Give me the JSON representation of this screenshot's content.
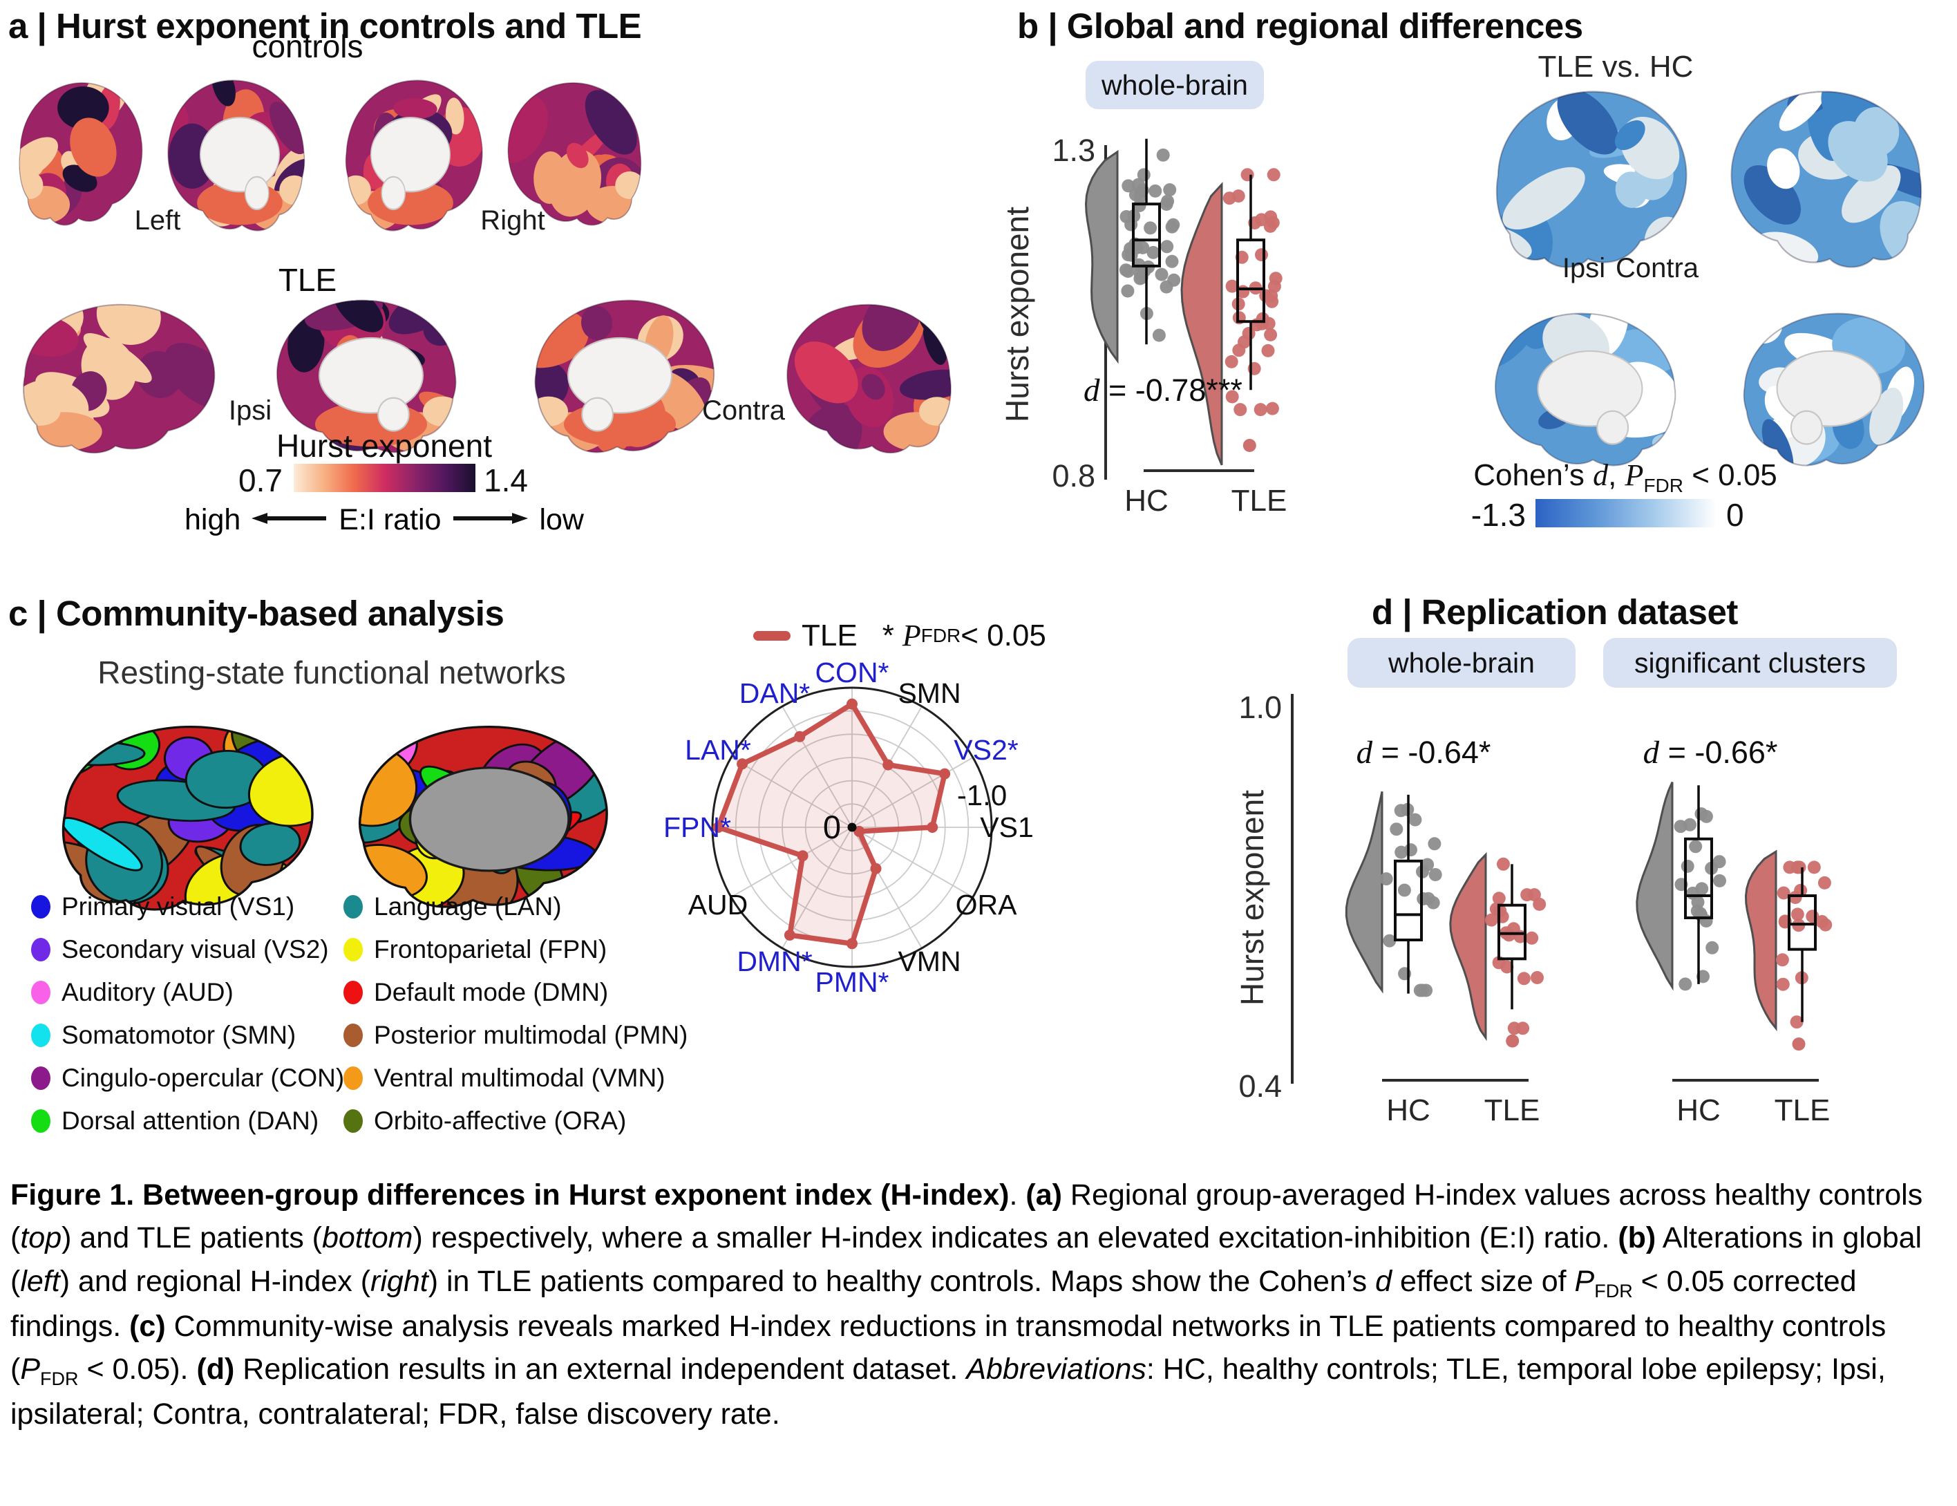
{
  "panel_a": {
    "title": "a | Hurst exponent in controls and TLE",
    "group_top": "controls",
    "group_bottom": "TLE",
    "left_label": "Left",
    "right_label": "Right",
    "ipsi_label": "Ipsi",
    "contra_label": "Contra",
    "colorbar": {
      "title": "Hurst exponent",
      "min": "0.7",
      "max": "1.4",
      "ei_high": "high",
      "ei_mid": "E:I ratio",
      "ei_low": "low"
    }
  },
  "panel_b": {
    "title": "b | Global and regional differences",
    "chip": "whole-brain",
    "y_top": "1.3",
    "y_bottom": "0.8",
    "y_label": "Hurst exponent",
    "effect": {
      "d": "d",
      "rest": " = -0.78***"
    },
    "x_hc": "HC",
    "x_tle": "TLE",
    "map_title": "TLE vs. HC",
    "ipsi": "Ipsi",
    "contra": "Contra",
    "cb": {
      "pre": "Cohen’s ",
      "d": "d",
      "mid": ", ",
      "p": "P",
      "sub": "FDR",
      "post": " < 0.05",
      "min": "-1.3",
      "max": "0"
    }
  },
  "panel_c": {
    "title": "c | Community-based analysis",
    "subtitle": "Resting-state functional networks",
    "legend": [
      {
        "label": "Primary visual (VS1)",
        "color": "#1616e0"
      },
      {
        "label": "Secondary visual (VS2)",
        "color": "#7129e8"
      },
      {
        "label": "Auditory (AUD)",
        "color": "#f861e8"
      },
      {
        "label": "Somatomotor (SMN)",
        "color": "#12e2ee"
      },
      {
        "label": "Cingulo-opercular (CON)",
        "color": "#8c1a8a"
      },
      {
        "label": "Dorsal attention (DAN)",
        "color": "#14dd14"
      },
      {
        "label": "Language (LAN)",
        "color": "#1b8a8f"
      },
      {
        "label": "Frontoparietal (FPN)",
        "color": "#f2ef0c"
      },
      {
        "label": "Default mode (DMN)",
        "color": "#ee1111"
      },
      {
        "label": "Posterior multimodal (PMN)",
        "color": "#a85c30"
      },
      {
        "label": "Ventral multimodal (VMN)",
        "color": "#f49a19"
      },
      {
        "label": "Orbito-affective (ORA)",
        "color": "#567312"
      }
    ],
    "radar_legend": {
      "series": "TLE",
      "star": "*",
      "p": "P",
      "sub": "FDR",
      "post": " < 0.05"
    }
  },
  "panel_d": {
    "title": "d | Replication dataset",
    "chip1": "whole-brain",
    "chip2": "significant clusters",
    "y_top": "1.0",
    "y_bottom": "0.4",
    "y_label": "Hurst exponent",
    "effect1": {
      "d": "d",
      "rest": " = -0.64*"
    },
    "effect2": {
      "d": "d",
      "rest": " = -0.66*"
    },
    "x1": "HC",
    "x2": "TLE",
    "x3": "HC",
    "x4": "TLE"
  },
  "colors": {
    "tle_red": "#c9524e",
    "tle_fill": "#cb7270",
    "tle_dot": "#cc6f6d",
    "hc_gray": "#909090",
    "hc_dot": "#8d8d8d",
    "chip_bg": "#d9e2f3",
    "radar_sig_label": "#1f1fce",
    "radar_plain_label": "#0d0d0d",
    "magma_gradient": [
      "#fdebd8",
      "#f7b183",
      "#ef6a4d",
      "#cf2d60",
      "#8c2369",
      "#51175e",
      "#19102e"
    ],
    "blue_gradient": [
      "#2c63c4",
      "#5f97d8",
      "#a8cdec",
      "#ffffff"
    ]
  },
  "brain_palettes": {
    "magma_base": "#9c2365",
    "magma": [
      "#1d1235",
      "#4a1a5c",
      "#7c2166",
      "#b02362",
      "#d8375c",
      "#e8674a",
      "#f2a173",
      "#f7cda4"
    ],
    "blue_base": "#5b9bd4",
    "blue": [
      "#ffffff",
      "#eef2f5",
      "#3f86c8",
      "#2f66ae",
      "#79b5e4",
      "#a9cfe8",
      "#ffffff",
      "#dde6eb"
    ],
    "parcel_base": "#cc1f1f",
    "parcel": [
      "#1616e0",
      "#7129e8",
      "#f861e8",
      "#12e2ee",
      "#8c1a8a",
      "#14dd14",
      "#1b8a8f",
      "#f2ef0c",
      "#ee1111",
      "#a85c30",
      "#f49a19",
      "#567312"
    ]
  },
  "chart_data": [
    {
      "id": "panel_a_surface_maps",
      "type": "heatmap",
      "subtype": "brain-surface",
      "title": "Hurst exponent in controls and TLE",
      "rows": [
        {
          "group": "controls",
          "views": [
            "lateral-left",
            "medial-left",
            "medial-right",
            "lateral-right"
          ],
          "labels": [
            "Left",
            "Right"
          ]
        },
        {
          "group": "TLE",
          "views": [
            "lateral-ipsi",
            "medial-ipsi",
            "medial-contra",
            "lateral-contra"
          ],
          "labels": [
            "Ipsi",
            "Contra"
          ]
        }
      ],
      "colorbar": {
        "label": "Hurst exponent",
        "min": 0.7,
        "max": 1.4,
        "annotation": "high E:I ratio ← low Hurst; low E:I ratio → high Hurst"
      }
    },
    {
      "id": "panel_b_raincloud",
      "type": "raincloud",
      "title": "whole-brain",
      "ylabel": "Hurst exponent",
      "ylim": [
        0.8,
        1.3
      ],
      "yticks": [
        0.8,
        1.3
      ],
      "annotation": "d = -0.78***",
      "groups": [
        {
          "name": "HC",
          "median": 1.16,
          "q1": 1.12,
          "q3": 1.215,
          "whisker_low": 1.0,
          "whisker_high": 1.315,
          "violin_top": 1.295,
          "violin_bottom": 0.975,
          "points_min": 0.98,
          "points_max": 1.29,
          "n": 42,
          "seed": 7,
          "outliers": []
        },
        {
          "name": "TLE",
          "median": 1.085,
          "q1": 1.035,
          "q3": 1.16,
          "whisker_low": 0.93,
          "whisker_high": 1.26,
          "violin_top": 1.245,
          "violin_bottom": 0.815,
          "points_min": 0.9,
          "points_max": 1.26,
          "n": 36,
          "seed": 11,
          "outliers": [
            0.845
          ]
        }
      ]
    },
    {
      "id": "panel_b_surface_map",
      "type": "heatmap",
      "subtype": "brain-surface",
      "title": "TLE vs. HC",
      "views": [
        "Ipsi",
        "Contra"
      ],
      "colorbar": {
        "label": "Cohen's d, P_FDR < 0.05",
        "min": -1.3,
        "max": 0
      }
    },
    {
      "id": "panel_c_radar",
      "type": "radar",
      "categories": [
        "CON",
        "SMN",
        "VS2",
        "VS1",
        "ORA",
        "VMN",
        "PMN",
        "DMN",
        "AUD",
        "FPN",
        "LAN",
        "DAN"
      ],
      "significant": [
        true,
        false,
        true,
        false,
        false,
        false,
        true,
        true,
        false,
        true,
        true,
        true
      ],
      "series": [
        {
          "name": "TLE",
          "color": "#c9524e",
          "values": [
            -1.06,
            -0.62,
            -0.92,
            -0.69,
            -0.07,
            -0.41,
            -1.0,
            -1.07,
            -0.49,
            -1.15,
            -1.09,
            -0.9
          ]
        }
      ],
      "r_axis": {
        "center_label": "0",
        "tick_label": "-1.0",
        "rmin": 0,
        "rmax": -1.2,
        "ring_step": 0.2
      },
      "legend": "TLE; * P_FDR < 0.05"
    },
    {
      "id": "panel_d_raincloud",
      "type": "raincloud",
      "ylabel": "Hurst exponent",
      "ylim": [
        0.4,
        1.0
      ],
      "yticks": [
        0.4,
        1.0
      ],
      "subplots": [
        {
          "title": "whole-brain",
          "annotation": "d = -0.64*",
          "groups": [
            {
              "name": "HC",
              "median": 0.67,
              "q1": 0.63,
              "q3": 0.755,
              "whisker_low": 0.545,
              "whisker_high": 0.86,
              "violin_top": 0.865,
              "violin_bottom": 0.55,
              "points_min": 0.55,
              "points_max": 0.86,
              "n": 20,
              "seed": 3,
              "outliers": []
            },
            {
              "name": "TLE",
              "median": 0.64,
              "q1": 0.6,
              "q3": 0.685,
              "whisker_low": 0.52,
              "whisker_high": 0.75,
              "violin_top": 0.765,
              "violin_bottom": 0.475,
              "points_min": 0.49,
              "points_max": 0.75,
              "n": 20,
              "seed": 5,
              "outliers": [
                0.47
              ]
            }
          ]
        },
        {
          "title": "significant clusters",
          "annotation": "d = -0.66*",
          "groups": [
            {
              "name": "HC",
              "median": 0.7,
              "q1": 0.665,
              "q3": 0.79,
              "whisker_low": 0.56,
              "whisker_high": 0.875,
              "violin_top": 0.88,
              "violin_bottom": 0.555,
              "points_min": 0.56,
              "points_max": 0.875,
              "n": 20,
              "seed": 9,
              "outliers": []
            },
            {
              "name": "TLE",
              "median": 0.655,
              "q1": 0.615,
              "q3": 0.7,
              "whisker_low": 0.5,
              "whisker_high": 0.745,
              "violin_top": 0.77,
              "violin_bottom": 0.49,
              "points_min": 0.5,
              "points_max": 0.745,
              "n": 20,
              "seed": 13,
              "outliers": [
                0.465
              ]
            }
          ]
        }
      ]
    }
  ],
  "caption": {
    "segments": [
      {
        "t": "Figure 1. Between-group differences in Hurst exponent index (H-index)",
        "b": 1
      },
      {
        "t": ". "
      },
      {
        "t": "(a)",
        "b": 1
      },
      {
        "t": " Regional group-averaged H-index values across healthy controls ("
      },
      {
        "t": "top",
        "i": 1
      },
      {
        "t": ") and TLE patients ("
      },
      {
        "t": "bottom",
        "i": 1
      },
      {
        "t": ") respectively, where a smaller H-index indicates an elevated excitation-inhibition (E:I) ratio. "
      },
      {
        "t": "(b)",
        "b": 1
      },
      {
        "t": " Alterations in global ("
      },
      {
        "t": "left",
        "i": 1
      },
      {
        "t": ") and regional H-index ("
      },
      {
        "t": "right",
        "i": 1
      },
      {
        "t": ") in TLE patients compared to healthy controls. Maps show the Cohen’s "
      },
      {
        "t": "d",
        "i": 1
      },
      {
        "t": " effect size of "
      },
      {
        "t": "P",
        "i": 1
      },
      {
        "t": "FDR",
        "sub": 1
      },
      {
        "t": " < 0.05 corrected findings. "
      },
      {
        "t": "(c)",
        "b": 1
      },
      {
        "t": " Community-wise analysis reveals marked H-index reductions in transmodal networks in TLE patients compared to healthy controls ("
      },
      {
        "t": "P",
        "i": 1
      },
      {
        "t": "FDR",
        "sub": 1
      },
      {
        "t": " < 0.05). "
      },
      {
        "t": "(d)",
        "b": 1
      },
      {
        "t": " Replication results in an external independent dataset. "
      },
      {
        "t": "Abbreviations",
        "i": 1
      },
      {
        "t": ": HC, healthy controls; TLE, temporal lobe epilepsy; Ipsi, ipsilateral; Contra, contralateral; FDR, false discovery rate."
      }
    ]
  }
}
